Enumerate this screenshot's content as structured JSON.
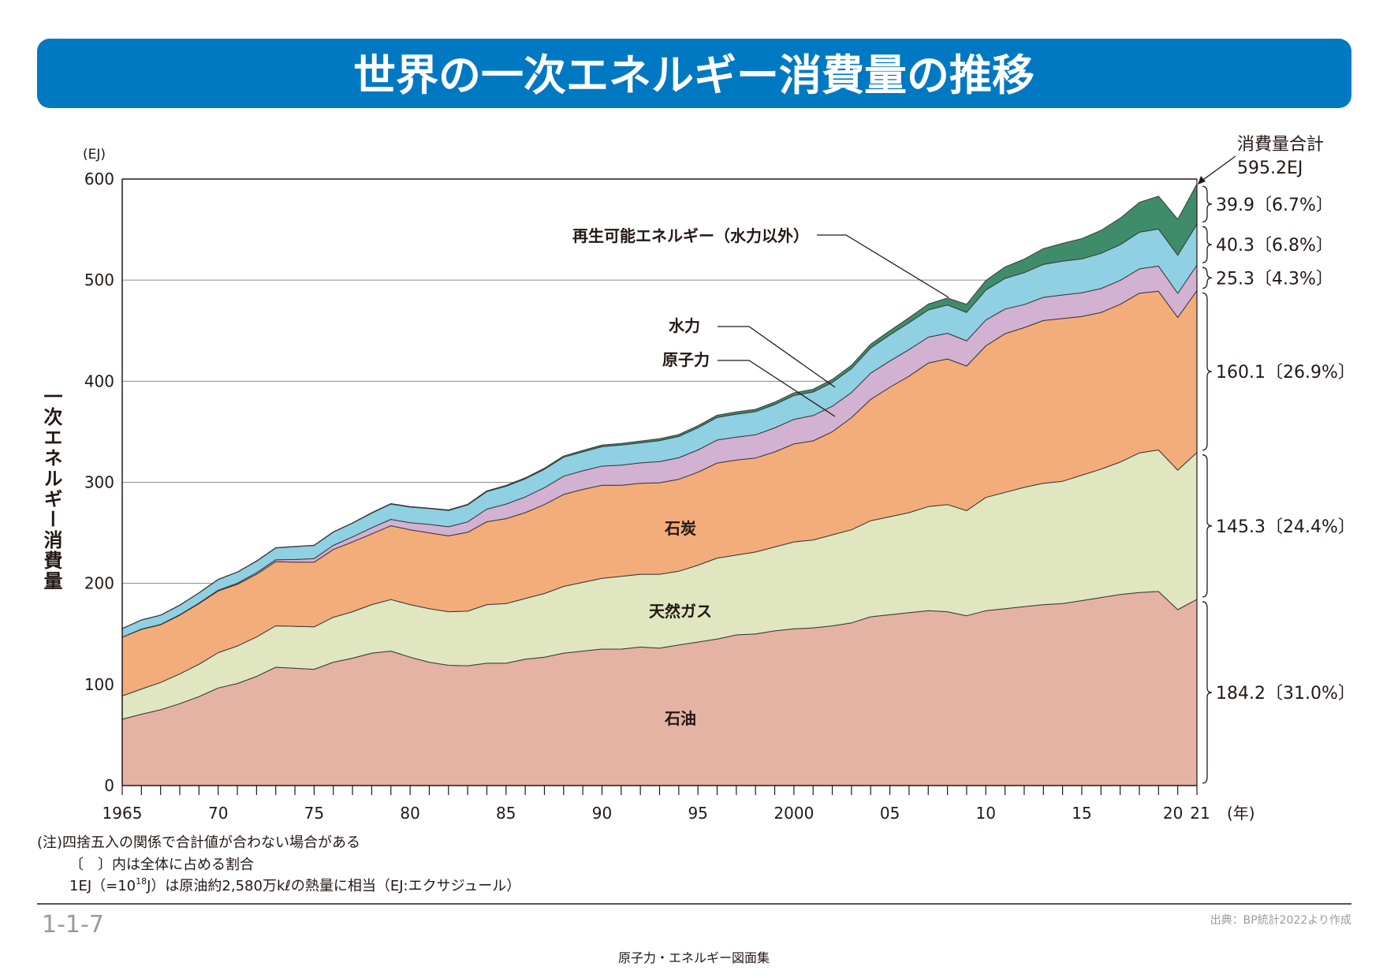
{
  "header": {
    "title": "世界の一次エネルギー消費量の推移",
    "color": "#0079c2"
  },
  "chart_data": {
    "type": "area",
    "stacked": true,
    "unit_label": "(EJ)",
    "ylabel": "一次エネルギー消費量",
    "xlabel_unit": "(年)",
    "ylim": [
      0,
      600
    ],
    "yticks": [
      "0",
      "100",
      "200",
      "300",
      "400",
      "500",
      "600"
    ],
    "grid": true,
    "xtick_labels": [
      {
        "year": 1965,
        "label": "1965"
      },
      {
        "year": 1970,
        "label": "70"
      },
      {
        "year": 1975,
        "label": "75"
      },
      {
        "year": 1980,
        "label": "80"
      },
      {
        "year": 1985,
        "label": "85"
      },
      {
        "year": 1990,
        "label": "90"
      },
      {
        "year": 1995,
        "label": "95"
      },
      {
        "year": 2000,
        "label": "2000"
      },
      {
        "year": 2005,
        "label": "05"
      },
      {
        "year": 2010,
        "label": "10"
      },
      {
        "year": 2015,
        "label": "15"
      },
      {
        "year": 2020,
        "label": "20"
      },
      {
        "year": 2021,
        "label": "21"
      }
    ],
    "x": [
      1965,
      1966,
      1967,
      1968,
      1969,
      1970,
      1971,
      1972,
      1973,
      1974,
      1975,
      1976,
      1977,
      1978,
      1979,
      1980,
      1981,
      1982,
      1983,
      1984,
      1985,
      1986,
      1987,
      1988,
      1989,
      1990,
      1991,
      1992,
      1993,
      1994,
      1995,
      1996,
      1997,
      1998,
      1999,
      2000,
      2001,
      2002,
      2003,
      2004,
      2005,
      2006,
      2007,
      2008,
      2009,
      2010,
      2011,
      2012,
      2013,
      2014,
      2015,
      2016,
      2017,
      2018,
      2019,
      2020,
      2021
    ],
    "series": [
      {
        "name": "石油",
        "color": "#e4b3a3",
        "label_2021": "184.2〔31.0%〕",
        "values": [
          65.6,
          70.5,
          75,
          81,
          88,
          96.5,
          101,
          108,
          117,
          116,
          115,
          122,
          126,
          131,
          133,
          127,
          122,
          119,
          118.5,
          121,
          121,
          125,
          127,
          131,
          133,
          135,
          135,
          137,
          136,
          139,
          142,
          145,
          149,
          150,
          153,
          155,
          156,
          158,
          161,
          167,
          169,
          171,
          173,
          172,
          168,
          173,
          175,
          177,
          179,
          180,
          183,
          186,
          189,
          191,
          192,
          174,
          184.2
        ]
      },
      {
        "name": "天然ガス",
        "color": "#e0e6c0",
        "label_2021": "145.3〔24.4%〕",
        "values": [
          23,
          25,
          27,
          29.5,
          32,
          35,
          37,
          39,
          41,
          41.5,
          42,
          44.5,
          46,
          48,
          51,
          52,
          53,
          53,
          54,
          58,
          59,
          60,
          63,
          66,
          68,
          70,
          72,
          72,
          73,
          73,
          76,
          80,
          79,
          81,
          83,
          86,
          87,
          90,
          92,
          95,
          97,
          99,
          103,
          106,
          104,
          112,
          115,
          118,
          120,
          121,
          124,
          127,
          131,
          138,
          140,
          138,
          145.3
        ]
      },
      {
        "name": "石炭",
        "color": "#f3ad7b",
        "label_2021": "160.1〔26.9%〕",
        "values": [
          58,
          59,
          57,
          58,
          60,
          61,
          61,
          62,
          63.5,
          63.5,
          64,
          67,
          69,
          70,
          73,
          74,
          75,
          75,
          78,
          82,
          84,
          85,
          88,
          91,
          92,
          92,
          90,
          90,
          90.5,
          91,
          92,
          94,
          94,
          93,
          94,
          97,
          98,
          102,
          111,
          120,
          128,
          135,
          142,
          144,
          143,
          150,
          157,
          158,
          161,
          161,
          157,
          155,
          156,
          158,
          157,
          151,
          160.1
        ]
      },
      {
        "name": "原子力",
        "color": "#d2b1d3",
        "label_2021": "25.3〔4.3%〕",
        "values": [
          0.2,
          0.3,
          0.4,
          0.5,
          0.6,
          0.8,
          1.1,
          1.5,
          1.9,
          2.6,
          3.5,
          4.1,
          5,
          6,
          6.3,
          7,
          8.3,
          9,
          10.3,
          12.5,
          14.5,
          15.5,
          16.7,
          18,
          18.4,
          19,
          20,
          20.2,
          21,
          21.3,
          22,
          22.8,
          22.6,
          23,
          23.8,
          24.3,
          25,
          25.2,
          24.8,
          25.9,
          26,
          26.3,
          25.6,
          25.4,
          25,
          25.5,
          24.4,
          22.8,
          23,
          23.3,
          23.4,
          23.6,
          23.7,
          24.1,
          24.9,
          23.9,
          25.3
        ]
      },
      {
        "name": "水力",
        "color": "#8fd0e2",
        "label_2021": "40.3〔6.8%〕",
        "values": [
          8.4,
          8.9,
          9.1,
          9.4,
          10,
          10.5,
          11,
          11.4,
          11.6,
          12.7,
          13,
          13.1,
          13.6,
          14.6,
          15.2,
          15.5,
          15.7,
          16.1,
          16.8,
          17.3,
          17.6,
          17.9,
          18.2,
          18.8,
          18.7,
          19.3,
          19.8,
          19.8,
          20.8,
          21,
          22,
          22.4,
          22.8,
          22.9,
          23.1,
          23.6,
          23.3,
          23.6,
          23.7,
          25,
          25.8,
          26.6,
          26.9,
          28,
          28.1,
          29.7,
          30.3,
          31.6,
          32.6,
          33.5,
          33.6,
          34.9,
          35.3,
          36.3,
          36.6,
          37.7,
          40.3
        ]
      },
      {
        "name": "再生可能エネルギー（水力以外）",
        "color": "#3f8c6b",
        "label_2021": "39.9〔6.7%〕",
        "values": [
          0.2,
          0.2,
          0.2,
          0.2,
          0.2,
          0.2,
          0.2,
          0.3,
          0.3,
          0.3,
          0.3,
          0.3,
          0.3,
          0.4,
          0.4,
          0.5,
          0.5,
          0.6,
          0.7,
          0.8,
          0.9,
          1,
          1.1,
          1.2,
          1.4,
          1.5,
          1.6,
          1.7,
          1.8,
          1.9,
          2,
          2.1,
          2.2,
          2.3,
          2.4,
          2.6,
          2.7,
          3,
          3.3,
          3.7,
          4.2,
          4.9,
          5.8,
          6.9,
          8,
          9.4,
          11.3,
          13.3,
          15.6,
          17.6,
          20,
          22.7,
          26.2,
          29.5,
          32.6,
          35.5,
          39.9
        ]
      }
    ],
    "series_labels": {
      "oil": "石油",
      "gas": "天然ガス",
      "coal": "石炭",
      "nuclear": "原子力",
      "hydro": "水力",
      "renewables": "再生可能エネルギー（水力以外）"
    },
    "total_annotation": {
      "line1": "消費量合計",
      "line2": "595.2EJ"
    }
  },
  "notes": {
    "line1": "(注)四捨五入の関係で合計値が合わない場合がある",
    "line2": "〔　〕内は全体に占める割合",
    "line3a": "1EJ（=10",
    "line3sup": "18",
    "line3b": "J）は原油約2,580万kℓの熱量に相当（EJ:エクサジュール）"
  },
  "footer": {
    "figure_no": "1-1-7",
    "source": "出典：BP統計2022より作成",
    "book": "原子力・エネルギー図面集"
  }
}
